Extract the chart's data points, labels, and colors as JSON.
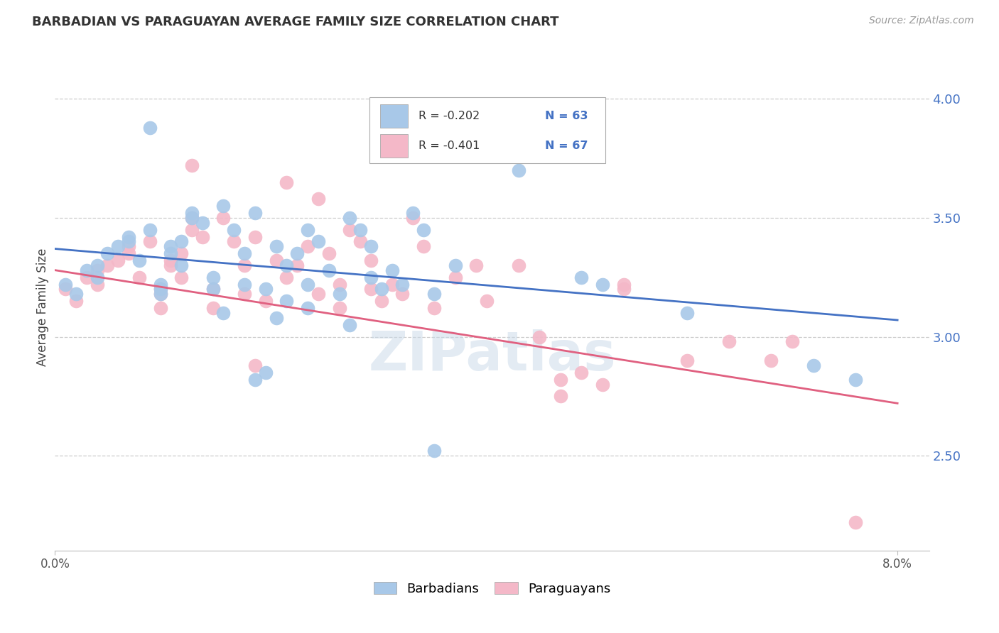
{
  "title": "BARBADIAN VS PARAGUAYAN AVERAGE FAMILY SIZE CORRELATION CHART",
  "source": "Source: ZipAtlas.com",
  "ylabel": "Average Family Size",
  "right_yticks": [
    2.5,
    3.0,
    3.5,
    4.0
  ],
  "watermark": "ZIPatlas",
  "legend_blue_r": "R = -0.202",
  "legend_blue_n": "N = 63",
  "legend_pink_r": "R = -0.401",
  "legend_pink_n": "N = 67",
  "blue_color": "#a8c8e8",
  "pink_color": "#f4b8c8",
  "line_blue": "#4472c4",
  "line_pink": "#e06080",
  "blue_scatter": [
    [
      0.001,
      3.22
    ],
    [
      0.002,
      3.18
    ],
    [
      0.003,
      3.28
    ],
    [
      0.004,
      3.3
    ],
    [
      0.004,
      3.25
    ],
    [
      0.005,
      3.35
    ],
    [
      0.006,
      3.38
    ],
    [
      0.007,
      3.42
    ],
    [
      0.007,
      3.4
    ],
    [
      0.008,
      3.32
    ],
    [
      0.009,
      3.45
    ],
    [
      0.01,
      3.2
    ],
    [
      0.01,
      3.22
    ],
    [
      0.01,
      3.18
    ],
    [
      0.011,
      3.38
    ],
    [
      0.011,
      3.35
    ],
    [
      0.012,
      3.4
    ],
    [
      0.012,
      3.3
    ],
    [
      0.013,
      3.5
    ],
    [
      0.013,
      3.52
    ],
    [
      0.014,
      3.48
    ],
    [
      0.015,
      3.25
    ],
    [
      0.015,
      3.2
    ],
    [
      0.016,
      3.55
    ],
    [
      0.017,
      3.45
    ],
    [
      0.018,
      3.22
    ],
    [
      0.018,
      3.35
    ],
    [
      0.019,
      3.52
    ],
    [
      0.02,
      3.2
    ],
    [
      0.021,
      3.38
    ],
    [
      0.022,
      3.3
    ],
    [
      0.023,
      3.35
    ],
    [
      0.024,
      3.45
    ],
    [
      0.024,
      3.22
    ],
    [
      0.025,
      3.4
    ],
    [
      0.026,
      3.28
    ],
    [
      0.027,
      3.18
    ],
    [
      0.028,
      3.5
    ],
    [
      0.029,
      3.45
    ],
    [
      0.03,
      3.38
    ],
    [
      0.03,
      3.25
    ],
    [
      0.031,
      3.2
    ],
    [
      0.032,
      3.28
    ],
    [
      0.033,
      3.22
    ],
    [
      0.034,
      3.52
    ],
    [
      0.035,
      3.45
    ],
    [
      0.036,
      3.18
    ],
    [
      0.038,
      3.3
    ],
    [
      0.009,
      3.88
    ],
    [
      0.044,
      3.7
    ],
    [
      0.05,
      3.25
    ],
    [
      0.019,
      2.82
    ],
    [
      0.02,
      2.85
    ],
    [
      0.036,
      2.52
    ],
    [
      0.022,
      3.15
    ],
    [
      0.016,
      3.1
    ],
    [
      0.021,
      3.08
    ],
    [
      0.052,
      3.22
    ],
    [
      0.06,
      3.1
    ],
    [
      0.072,
      2.88
    ],
    [
      0.076,
      2.82
    ],
    [
      0.024,
      3.12
    ],
    [
      0.028,
      3.05
    ]
  ],
  "pink_scatter": [
    [
      0.001,
      3.2
    ],
    [
      0.002,
      3.15
    ],
    [
      0.003,
      3.25
    ],
    [
      0.004,
      3.28
    ],
    [
      0.004,
      3.22
    ],
    [
      0.005,
      3.3
    ],
    [
      0.006,
      3.32
    ],
    [
      0.007,
      3.38
    ],
    [
      0.007,
      3.35
    ],
    [
      0.008,
      3.25
    ],
    [
      0.009,
      3.4
    ],
    [
      0.01,
      3.18
    ],
    [
      0.01,
      3.2
    ],
    [
      0.01,
      3.12
    ],
    [
      0.011,
      3.32
    ],
    [
      0.011,
      3.3
    ],
    [
      0.012,
      3.35
    ],
    [
      0.012,
      3.25
    ],
    [
      0.013,
      3.45
    ],
    [
      0.013,
      3.5
    ],
    [
      0.014,
      3.42
    ],
    [
      0.015,
      3.2
    ],
    [
      0.015,
      3.12
    ],
    [
      0.016,
      3.5
    ],
    [
      0.017,
      3.4
    ],
    [
      0.018,
      3.18
    ],
    [
      0.018,
      3.3
    ],
    [
      0.019,
      3.42
    ],
    [
      0.02,
      3.15
    ],
    [
      0.021,
      3.32
    ],
    [
      0.022,
      3.25
    ],
    [
      0.023,
      3.3
    ],
    [
      0.024,
      3.38
    ],
    [
      0.025,
      3.18
    ],
    [
      0.026,
      3.35
    ],
    [
      0.027,
      3.22
    ],
    [
      0.027,
      3.12
    ],
    [
      0.028,
      3.45
    ],
    [
      0.029,
      3.4
    ],
    [
      0.03,
      3.32
    ],
    [
      0.03,
      3.2
    ],
    [
      0.031,
      3.15
    ],
    [
      0.032,
      3.22
    ],
    [
      0.033,
      3.18
    ],
    [
      0.034,
      3.5
    ],
    [
      0.035,
      3.38
    ],
    [
      0.036,
      3.12
    ],
    [
      0.038,
      3.25
    ],
    [
      0.019,
      2.88
    ],
    [
      0.013,
      3.72
    ],
    [
      0.022,
      3.65
    ],
    [
      0.025,
      3.58
    ],
    [
      0.04,
      3.3
    ],
    [
      0.041,
      3.15
    ],
    [
      0.044,
      3.3
    ],
    [
      0.046,
      3.0
    ],
    [
      0.048,
      2.82
    ],
    [
      0.05,
      2.85
    ],
    [
      0.048,
      2.75
    ],
    [
      0.052,
      2.8
    ],
    [
      0.054,
      3.2
    ],
    [
      0.054,
      3.22
    ],
    [
      0.06,
      2.9
    ],
    [
      0.064,
      2.98
    ],
    [
      0.068,
      2.9
    ],
    [
      0.07,
      2.98
    ],
    [
      0.076,
      2.22
    ]
  ],
  "blue_line": {
    "x0": 0.0,
    "x1": 0.08,
    "y0": 3.37,
    "y1": 3.07
  },
  "pink_line": {
    "x0": 0.0,
    "x1": 0.08,
    "y0": 3.28,
    "y1": 2.72
  },
  "xlim": [
    0.0,
    0.083
  ],
  "ylim": [
    2.1,
    4.15
  ],
  "plot_ylim": [
    2.1,
    4.15
  ]
}
